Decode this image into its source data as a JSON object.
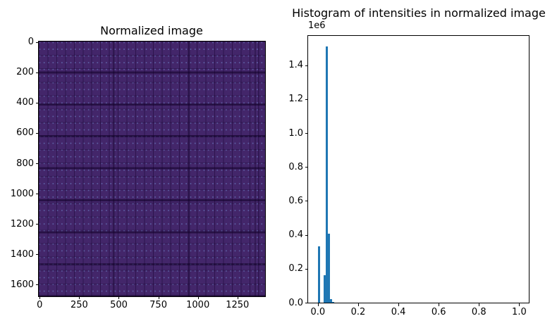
{
  "figure": {
    "background": "#ffffff"
  },
  "left_plot": {
    "title": "Normalized image",
    "x_tick_labels": [
      "0",
      "250",
      "500",
      "750",
      "1000",
      "1250"
    ],
    "y_tick_labels": [
      "0",
      "200",
      "400",
      "600",
      "800",
      "1000",
      "1200",
      "1400",
      "1600"
    ],
    "colors": {
      "paper_base": "#43266a",
      "grid_line": "#321456",
      "ruled_band": "#2a0c4a",
      "dot_texture": "#7492d6"
    }
  },
  "right_plot": {
    "title": "Histogram of intensities in normalized image",
    "offset_label": "1e6",
    "x_tick_labels": [
      "0.0",
      "0.2",
      "0.4",
      "0.6",
      "0.8",
      "1.0"
    ],
    "y_tick_labels": [
      "0.0",
      "0.2",
      "0.4",
      "0.6",
      "0.8",
      "1.0",
      "1.2",
      "1.4"
    ],
    "bar_color": "#1f77b4"
  },
  "chart_data": [
    {
      "type": "image",
      "title": "Normalized image",
      "description": "Dark purple (low-intensity viridis) rendering of scanned graph paper: fine grid cells, darker horizontal ruled bands roughly every 210 pixels, faint lighter dot texture",
      "x_range": [
        0,
        1425
      ],
      "y_range": [
        1680,
        0
      ],
      "x_ticks": [
        0,
        250,
        500,
        750,
        1000,
        1250
      ],
      "y_ticks": [
        0,
        200,
        400,
        600,
        800,
        1000,
        1200,
        1400,
        1600
      ],
      "origin": "upper"
    },
    {
      "type": "bar",
      "title": "Histogram of intensities in normalized image",
      "xlabel": "",
      "ylabel": "",
      "xlim": [
        -0.05,
        1.05
      ],
      "ylim": [
        0,
        1590000
      ],
      "y_offset_text": "1e6",
      "bin_width": 0.01,
      "bins": [
        {
          "x0": 0.0,
          "x1": 0.01,
          "count": 332000
        },
        {
          "x0": 0.03,
          "x1": 0.04,
          "count": 162000
        },
        {
          "x0": 0.04,
          "x1": 0.05,
          "count": 1510000
        },
        {
          "x0": 0.05,
          "x1": 0.06,
          "count": 405000
        },
        {
          "x0": 0.06,
          "x1": 0.07,
          "count": 19000
        },
        {
          "x0": 0.07,
          "x1": 0.08,
          "count": 6000
        }
      ],
      "x_ticks": [
        0.0,
        0.2,
        0.4,
        0.6,
        0.8,
        1.0
      ],
      "y_ticks": [
        0.0,
        0.2,
        0.4,
        0.6,
        0.8,
        1.0,
        1.2,
        1.4
      ],
      "legend": "none",
      "grid": false
    }
  ]
}
